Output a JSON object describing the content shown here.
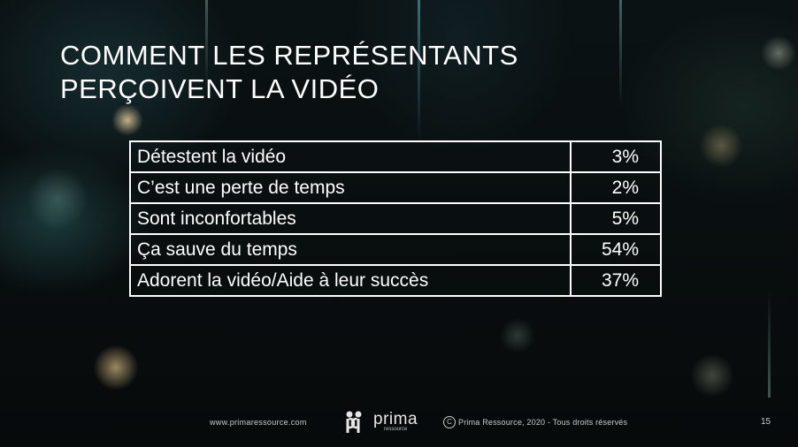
{
  "slide": {
    "title_line1": "COMMENT LES REPRÉSENTANTS",
    "title_line2": "PERÇOIVENT LA VIDÉO"
  },
  "table": {
    "rows": [
      {
        "label": "Détestent la vidéo",
        "value": "3%"
      },
      {
        "label": "C’est une perte de temps",
        "value": "2%"
      },
      {
        "label": "Sont inconfortables",
        "value": "5%"
      },
      {
        "label": "Ça sauve du temps",
        "value": "54%"
      },
      {
        "label": "Adorent la vidéo/Aide à leur succès",
        "value": "37%"
      }
    ]
  },
  "footer": {
    "url": "www.primaressource.com",
    "logo_word": "prima",
    "logo_sub": "ressource",
    "copyright_symbol": "C",
    "copyright_text": "Prima Ressource, 2020 - Tous droits réservés",
    "page_number": "15"
  },
  "colors": {
    "background": "#0b1214",
    "text": "#ffffff",
    "table_border": "#ffffff"
  }
}
